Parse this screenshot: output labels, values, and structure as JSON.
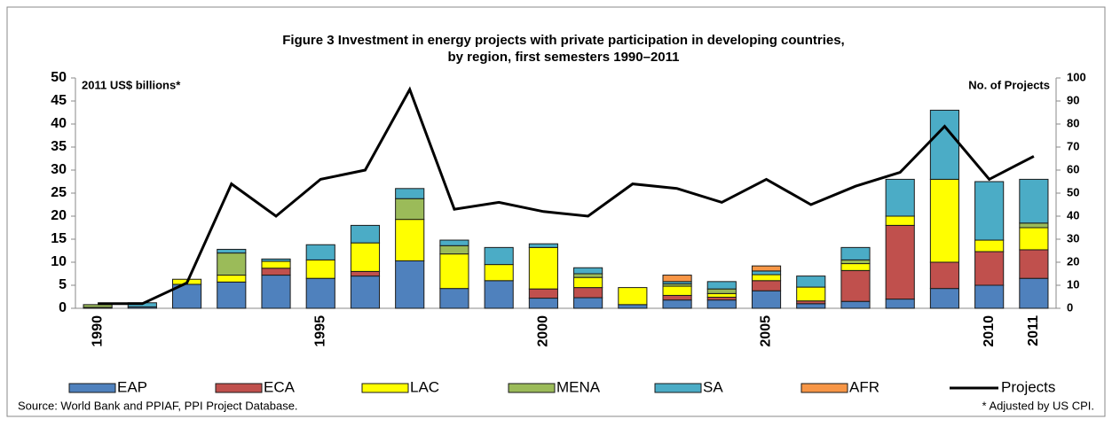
{
  "chart_data": {
    "type": "bar",
    "stacked": true,
    "title": [
      "Figure 3 Investment in energy projects with private participation in developing countries,",
      "by region, first semesters 1990–2011"
    ],
    "y_label": "2011 US$  billions*",
    "y2_label": "No. of Projects",
    "source": "Source:  World Bank and PPIAF, PPI Project Database.",
    "note": "* Adjusted by US CPI.",
    "categories": [
      "1990",
      null,
      null,
      null,
      null,
      "1995",
      null,
      null,
      null,
      null,
      "2000",
      null,
      null,
      null,
      null,
      "2005",
      null,
      null,
      null,
      null,
      "2010",
      "2011"
    ],
    "series": [
      {
        "name": "EAP",
        "color": "#4f81bd",
        "values": [
          0.2,
          0.3,
          5.2,
          5.7,
          7.2,
          6.5,
          7,
          10.3,
          4.3,
          6,
          2.2,
          2.3,
          0.8,
          1.8,
          1.8,
          3.8,
          1,
          1.5,
          2,
          4.3,
          5,
          6.5
        ]
      },
      {
        "name": "ECA",
        "color": "#c0504d",
        "values": [
          0,
          0,
          0,
          0,
          1.5,
          0,
          1,
          0,
          0,
          0,
          2,
          2.2,
          0,
          1,
          0.6,
          2.2,
          0.6,
          6.7,
          16,
          5.7,
          7.3,
          6.2
        ]
      },
      {
        "name": "LAC",
        "color": "#ffff00",
        "values": [
          0,
          0,
          1.1,
          1.5,
          1.5,
          4,
          6.2,
          9,
          7.5,
          3.5,
          9,
          2.2,
          3.7,
          2,
          0.8,
          1.3,
          3,
          1.5,
          2,
          18,
          2.5,
          4.8
        ]
      },
      {
        "name": "MENA",
        "color": "#9bbb59",
        "values": [
          0.6,
          0,
          0,
          4.8,
          0,
          0,
          0,
          4.5,
          1.8,
          0,
          0,
          0.8,
          0,
          0.5,
          1,
          0,
          0,
          0.8,
          0,
          0,
          0,
          1
        ]
      },
      {
        "name": "SA",
        "color": "#4bacc6",
        "values": [
          0,
          0.9,
          0,
          0.8,
          0.5,
          3.3,
          3.8,
          2.2,
          1.2,
          3.7,
          0.8,
          1.3,
          0,
          0.5,
          1.6,
          0.8,
          2.4,
          2.7,
          8,
          15,
          12.7,
          9.5
        ]
      },
      {
        "name": "AFR",
        "color": "#f79646",
        "values": [
          0,
          0,
          0,
          0,
          0,
          0,
          0,
          0,
          0,
          0,
          0,
          0,
          0,
          1.4,
          0,
          1.1,
          0,
          0,
          0,
          0,
          0,
          0
        ]
      },
      {
        "name": "Projects",
        "color": "#000000",
        "type": "line",
        "axis": "y2",
        "values": [
          2,
          2,
          11,
          54,
          40,
          56,
          60,
          95,
          43,
          46,
          42,
          40,
          54,
          52,
          46,
          56,
          45,
          53,
          59,
          79,
          56,
          66
        ]
      }
    ],
    "ylim": [
      0,
      50
    ],
    "yticks": [
      0,
      5,
      10,
      15,
      20,
      25,
      30,
      35,
      40,
      45,
      50
    ],
    "y2lim": [
      0,
      100
    ],
    "y2ticks": [
      0,
      10,
      20,
      30,
      40,
      50,
      60,
      70,
      80,
      90,
      100
    ]
  }
}
